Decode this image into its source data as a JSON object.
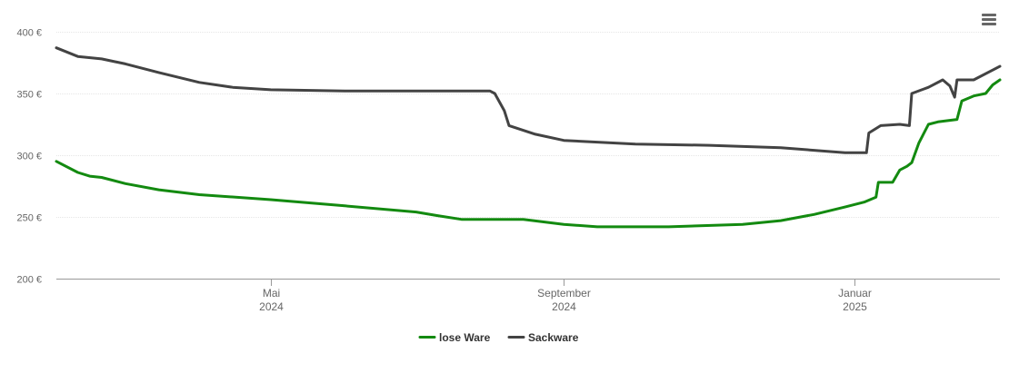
{
  "chart_data": {
    "type": "line",
    "y_axis": {
      "ticks": [
        200,
        250,
        300,
        350,
        400
      ],
      "tick_labels": [
        "200 €",
        "250 €",
        "300 €",
        "350 €",
        "400 €"
      ],
      "ylim": [
        200,
        400
      ]
    },
    "x_axis": {
      "range": [
        "2024-02-01",
        "2025-03-03"
      ],
      "ticks": [
        {
          "date": "2024-05-01",
          "label": "Mai",
          "sublabel": "2024"
        },
        {
          "date": "2024-09-01",
          "label": "September",
          "sublabel": "2024"
        },
        {
          "date": "2025-01-01",
          "label": "Januar",
          "sublabel": "2025"
        }
      ]
    },
    "grid": "horizontal",
    "legend_position": "bottom-center",
    "series": [
      {
        "name": "lose Ware",
        "color": "#138a10",
        "points": [
          [
            "2024-02-01",
            295
          ],
          [
            "2024-02-10",
            286
          ],
          [
            "2024-02-15",
            283
          ],
          [
            "2024-02-20",
            282
          ],
          [
            "2024-03-01",
            277
          ],
          [
            "2024-03-15",
            272
          ],
          [
            "2024-04-01",
            268
          ],
          [
            "2024-05-01",
            264
          ],
          [
            "2024-06-01",
            259
          ],
          [
            "2024-07-01",
            254
          ],
          [
            "2024-07-10",
            251
          ],
          [
            "2024-07-20",
            248
          ],
          [
            "2024-08-15",
            248
          ],
          [
            "2024-09-01",
            244
          ],
          [
            "2024-09-15",
            242
          ],
          [
            "2024-10-15",
            242
          ],
          [
            "2024-11-15",
            244
          ],
          [
            "2024-12-01",
            247
          ],
          [
            "2024-12-15",
            252
          ],
          [
            "2024-12-28",
            258
          ],
          [
            "2025-01-05",
            262
          ],
          [
            "2025-01-10",
            266
          ],
          [
            "2025-01-11",
            278
          ],
          [
            "2025-01-17",
            278
          ],
          [
            "2025-01-20",
            288
          ],
          [
            "2025-01-23",
            291
          ],
          [
            "2025-01-25",
            294
          ],
          [
            "2025-01-28",
            310
          ],
          [
            "2025-02-01",
            325
          ],
          [
            "2025-02-05",
            327
          ],
          [
            "2025-02-13",
            329
          ],
          [
            "2025-02-15",
            344
          ],
          [
            "2025-02-20",
            348
          ],
          [
            "2025-02-25",
            350
          ],
          [
            "2025-02-28",
            357
          ],
          [
            "2025-03-03",
            361
          ]
        ]
      },
      {
        "name": "Sackware",
        "color": "#434343",
        "points": [
          [
            "2024-02-01",
            387
          ],
          [
            "2024-02-10",
            380
          ],
          [
            "2024-02-20",
            378
          ],
          [
            "2024-03-01",
            374
          ],
          [
            "2024-03-15",
            367
          ],
          [
            "2024-04-01",
            359
          ],
          [
            "2024-04-15",
            355
          ],
          [
            "2024-05-01",
            353
          ],
          [
            "2024-06-01",
            352
          ],
          [
            "2024-07-01",
            352
          ],
          [
            "2024-08-01",
            352
          ],
          [
            "2024-08-03",
            350
          ],
          [
            "2024-08-07",
            336
          ],
          [
            "2024-08-09",
            324
          ],
          [
            "2024-08-20",
            317
          ],
          [
            "2024-09-01",
            312
          ],
          [
            "2024-10-01",
            309
          ],
          [
            "2024-11-01",
            308
          ],
          [
            "2024-12-01",
            306
          ],
          [
            "2024-12-15",
            304
          ],
          [
            "2024-12-28",
            302
          ],
          [
            "2025-01-06",
            302
          ],
          [
            "2025-01-07",
            318
          ],
          [
            "2025-01-12",
            324
          ],
          [
            "2025-01-20",
            325
          ],
          [
            "2025-01-24",
            324
          ],
          [
            "2025-01-25",
            350
          ],
          [
            "2025-02-01",
            355
          ],
          [
            "2025-02-07",
            361
          ],
          [
            "2025-02-10",
            356
          ],
          [
            "2025-02-12",
            347
          ],
          [
            "2025-02-13",
            361
          ],
          [
            "2025-02-20",
            361
          ],
          [
            "2025-03-03",
            372
          ]
        ]
      }
    ]
  },
  "menu": {
    "icon": "hamburger-menu-icon"
  }
}
